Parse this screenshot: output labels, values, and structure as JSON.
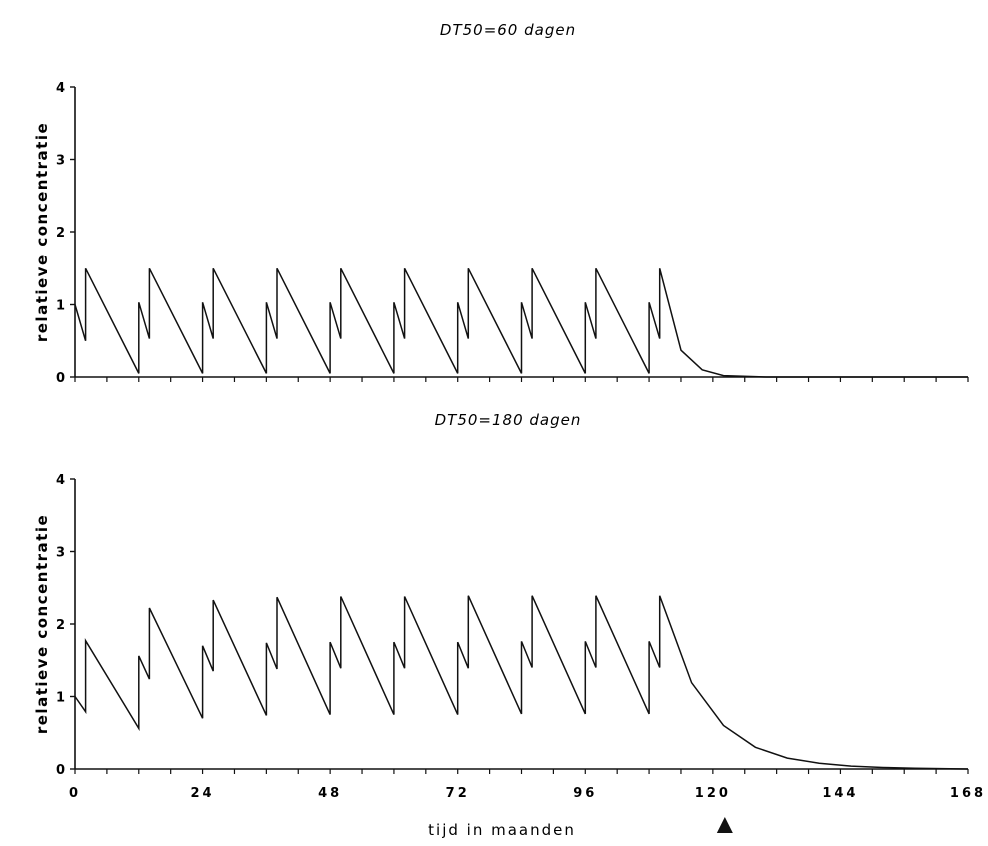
{
  "chart_data": [
    {
      "type": "line",
      "title": "DT50=60 dagen",
      "ylabel": "relatieve concentratie",
      "xlabel": "",
      "xlim": [
        0,
        168
      ],
      "ylim": [
        0,
        4
      ],
      "yticks": [
        "0",
        "1",
        "2",
        "3",
        "4"
      ],
      "xticks": [],
      "grid": false,
      "series": [
        {
          "x": [
            0,
            2,
            2,
            12,
            12,
            14,
            14,
            24,
            24,
            26,
            26,
            36,
            36,
            38,
            38,
            48,
            48,
            50,
            50,
            60,
            60,
            62,
            62,
            72,
            72,
            74,
            74,
            84,
            84,
            86,
            86,
            96,
            96,
            98,
            98,
            108,
            108,
            110,
            110,
            114,
            118,
            122,
            130,
            140,
            168
          ],
          "y": [
            1.0,
            0.5,
            1.5,
            0.05,
            1.03,
            0.53,
            1.5,
            0.05,
            1.03,
            0.53,
            1.5,
            0.05,
            1.03,
            0.53,
            1.5,
            0.05,
            1.03,
            0.53,
            1.5,
            0.05,
            1.03,
            0.53,
            1.5,
            0.05,
            1.03,
            0.53,
            1.5,
            0.05,
            1.03,
            0.53,
            1.5,
            0.05,
            1.03,
            0.53,
            1.5,
            0.05,
            1.03,
            0.53,
            1.5,
            0.37,
            0.1,
            0.02,
            0.0,
            0.0,
            0.0
          ]
        }
      ]
    },
    {
      "type": "line",
      "title": "DT50=180 dagen",
      "ylabel": "relatieve concentratie",
      "xlabel": "tijd in maanden",
      "xlim": [
        0,
        168
      ],
      "ylim": [
        0,
        4
      ],
      "yticks": [
        "0",
        "1",
        "2",
        "3",
        "4"
      ],
      "xticks": [
        "0",
        "24",
        "48",
        "72",
        "96",
        "120",
        "144",
        "168"
      ],
      "grid": false,
      "marker_x": 120,
      "series": [
        {
          "x": [
            0,
            2,
            2,
            12,
            12,
            14,
            14,
            24,
            24,
            26,
            26,
            36,
            36,
            38,
            38,
            48,
            48,
            50,
            50,
            60,
            60,
            62,
            62,
            72,
            72,
            74,
            74,
            84,
            84,
            86,
            86,
            96,
            96,
            98,
            98,
            108,
            108,
            110,
            110,
            116,
            122,
            128,
            134,
            140,
            146,
            152,
            158,
            168
          ],
          "y": [
            1.0,
            0.79,
            1.77,
            0.56,
            1.56,
            1.24,
            2.22,
            0.7,
            1.7,
            1.35,
            2.33,
            0.74,
            1.74,
            1.38,
            2.37,
            0.75,
            1.75,
            1.39,
            2.38,
            0.75,
            1.75,
            1.39,
            2.38,
            0.75,
            1.75,
            1.39,
            2.39,
            0.76,
            1.76,
            1.4,
            2.39,
            0.76,
            1.76,
            1.4,
            2.39,
            0.76,
            1.76,
            1.4,
            2.39,
            1.19,
            0.6,
            0.3,
            0.15,
            0.08,
            0.04,
            0.02,
            0.01,
            0.0
          ]
        }
      ]
    }
  ]
}
